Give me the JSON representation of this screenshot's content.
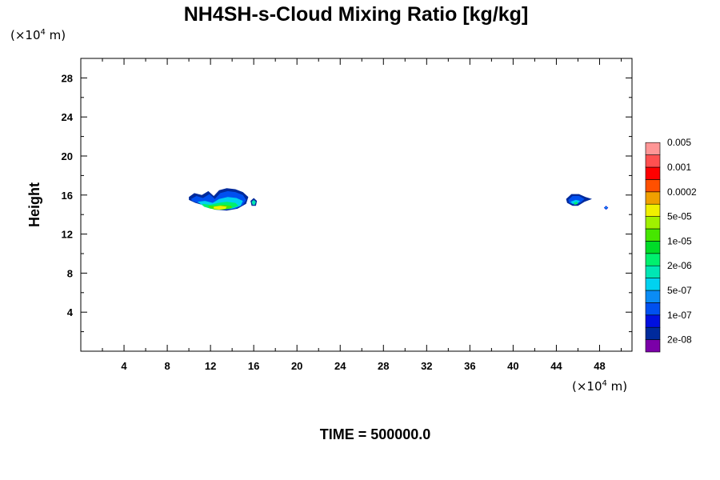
{
  "chart_data": {
    "type": "contour",
    "title": "NH4SH-s-Cloud Mixing Ratio [kg/kg]",
    "ylabel": "Height",
    "x_unit": {
      "prefix": "(×10",
      "exp": "4",
      "suffix": " m)"
    },
    "y_unit": {
      "prefix": "(×10",
      "exp": "4",
      "suffix": " m)"
    },
    "xlim": [
      0,
      51
    ],
    "ylim": [
      0,
      30
    ],
    "x_ticks": [
      4,
      8,
      12,
      16,
      20,
      24,
      28,
      32,
      36,
      40,
      44,
      48
    ],
    "y_ticks": [
      4,
      8,
      12,
      16,
      20,
      24,
      28
    ],
    "time_label": "TIME = 500000.0",
    "colorbar": {
      "colors": [
        "#7b00a8",
        "#002a9c",
        "#0010e0",
        "#0050f0",
        "#0a8cf5",
        "#00d2f0",
        "#00e6b4",
        "#00f06e",
        "#00dc28",
        "#46e600",
        "#a0f000",
        "#f0f000",
        "#f0a000",
        "#ff5000",
        "#ff0000",
        "#ff5050",
        "#ff9696"
      ],
      "labels": [
        {
          "text": "2e-08",
          "boundary": 1
        },
        {
          "text": "1e-07",
          "boundary": 3
        },
        {
          "text": "5e-07",
          "boundary": 5
        },
        {
          "text": "2e-06",
          "boundary": 7
        },
        {
          "text": "1e-05",
          "boundary": 9
        },
        {
          "text": "5e-05",
          "boundary": 11
        },
        {
          "text": "0.0002",
          "boundary": 13
        },
        {
          "text": "0.001",
          "boundary": 15
        },
        {
          "text": "0.005",
          "boundary": 17
        }
      ]
    },
    "cloud_regions": [
      {
        "name": "cloud-west",
        "layers": [
          {
            "level": 1,
            "points": [
              [
                10.0,
                15.8
              ],
              [
                10.5,
                16.2
              ],
              [
                11.2,
                16.0
              ],
              [
                11.8,
                16.4
              ],
              [
                12.3,
                15.9
              ],
              [
                12.8,
                16.5
              ],
              [
                13.5,
                16.7
              ],
              [
                14.3,
                16.6
              ],
              [
                15.0,
                16.3
              ],
              [
                15.5,
                15.8
              ],
              [
                15.3,
                15.1
              ],
              [
                14.5,
                14.6
              ],
              [
                13.5,
                14.4
              ],
              [
                12.5,
                14.5
              ],
              [
                11.5,
                14.9
              ],
              [
                10.6,
                15.2
              ],
              [
                10.0,
                15.5
              ]
            ]
          },
          {
            "level": 3,
            "points": [
              [
                10.2,
                15.6
              ],
              [
                10.7,
                15.9
              ],
              [
                11.3,
                15.7
              ],
              [
                11.9,
                16.1
              ],
              [
                12.4,
                15.6
              ],
              [
                12.9,
                16.2
              ],
              [
                13.6,
                16.4
              ],
              [
                14.3,
                16.3
              ],
              [
                15.0,
                16.0
              ],
              [
                15.3,
                15.5
              ],
              [
                15.0,
                15.0
              ],
              [
                14.3,
                14.6
              ],
              [
                13.3,
                14.5
              ],
              [
                12.4,
                14.6
              ],
              [
                11.5,
                15.0
              ],
              [
                10.8,
                15.2
              ],
              [
                10.3,
                15.4
              ]
            ]
          },
          {
            "level": 5,
            "points": [
              [
                10.8,
                15.3
              ],
              [
                11.5,
                15.4
              ],
              [
                12.2,
                15.2
              ],
              [
                12.8,
                15.6
              ],
              [
                13.6,
                15.8
              ],
              [
                14.4,
                15.7
              ],
              [
                15.0,
                15.4
              ],
              [
                14.8,
                14.9
              ],
              [
                14.0,
                14.6
              ],
              [
                13.0,
                14.5
              ],
              [
                12.2,
                14.6
              ],
              [
                11.3,
                14.9
              ]
            ]
          },
          {
            "level": 7,
            "points": [
              [
                11.2,
                15.1
              ],
              [
                12.0,
                15.0
              ],
              [
                12.7,
                15.2
              ],
              [
                13.5,
                15.3
              ],
              [
                14.3,
                15.2
              ],
              [
                14.6,
                14.9
              ],
              [
                13.8,
                14.6
              ],
              [
                12.8,
                14.5
              ],
              [
                12.0,
                14.6
              ],
              [
                11.4,
                14.8
              ]
            ]
          },
          {
            "level": 9,
            "points": [
              [
                11.8,
                14.9
              ],
              [
                12.5,
                14.9
              ],
              [
                13.2,
                15.0
              ],
              [
                13.9,
                14.9
              ],
              [
                14.0,
                14.7
              ],
              [
                13.2,
                14.5
              ],
              [
                12.4,
                14.5
              ],
              [
                11.9,
                14.7
              ]
            ]
          },
          {
            "level": 11,
            "points": [
              [
                12.3,
                14.8
              ],
              [
                12.9,
                14.9
              ],
              [
                13.5,
                14.8
              ],
              [
                13.4,
                14.6
              ],
              [
                12.8,
                14.5
              ],
              [
                12.3,
                14.6
              ]
            ]
          }
        ]
      },
      {
        "name": "cloud-west-fragment",
        "layers": [
          {
            "level": 1,
            "points": [
              [
                15.7,
                15.4
              ],
              [
                16.0,
                15.7
              ],
              [
                16.3,
                15.4
              ],
              [
                16.2,
                14.9
              ],
              [
                15.8,
                14.9
              ]
            ]
          },
          {
            "level": 6,
            "points": [
              [
                15.8,
                15.3
              ],
              [
                16.0,
                15.5
              ],
              [
                16.2,
                15.3
              ],
              [
                16.1,
                15.0
              ],
              [
                15.9,
                15.0
              ]
            ]
          }
        ]
      },
      {
        "name": "cloud-east",
        "layers": [
          {
            "level": 1,
            "points": [
              [
                44.9,
                15.6
              ],
              [
                45.4,
                16.1
              ],
              [
                46.1,
                16.1
              ],
              [
                46.7,
                15.8
              ],
              [
                47.3,
                15.6
              ],
              [
                46.6,
                15.3
              ],
              [
                46.0,
                14.9
              ],
              [
                45.5,
                14.9
              ],
              [
                45.0,
                15.2
              ]
            ]
          },
          {
            "level": 3,
            "points": [
              [
                45.1,
                15.5
              ],
              [
                45.5,
                15.9
              ],
              [
                46.1,
                15.9
              ],
              [
                46.6,
                15.6
              ],
              [
                46.2,
                15.2
              ],
              [
                45.7,
                15.0
              ],
              [
                45.2,
                15.2
              ]
            ]
          },
          {
            "level": 5,
            "points": [
              [
                45.3,
                15.3
              ],
              [
                45.8,
                15.5
              ],
              [
                46.2,
                15.4
              ],
              [
                45.9,
                15.1
              ],
              [
                45.5,
                15.1
              ]
            ]
          },
          {
            "level": 7,
            "points": [
              [
                45.6,
                15.2
              ],
              [
                45.9,
                15.3
              ],
              [
                46.0,
                15.1
              ],
              [
                45.7,
                15.0
              ]
            ]
          }
        ]
      },
      {
        "name": "cloud-east-dot",
        "layers": [
          {
            "level": 2,
            "points": [
              [
                48.4,
                14.7
              ],
              [
                48.6,
                14.9
              ],
              [
                48.8,
                14.7
              ],
              [
                48.6,
                14.5
              ]
            ]
          },
          {
            "level": 5,
            "points": [
              [
                48.5,
                14.7
              ],
              [
                48.6,
                14.8
              ],
              [
                48.7,
                14.7
              ],
              [
                48.6,
                14.6
              ]
            ]
          }
        ]
      }
    ]
  }
}
